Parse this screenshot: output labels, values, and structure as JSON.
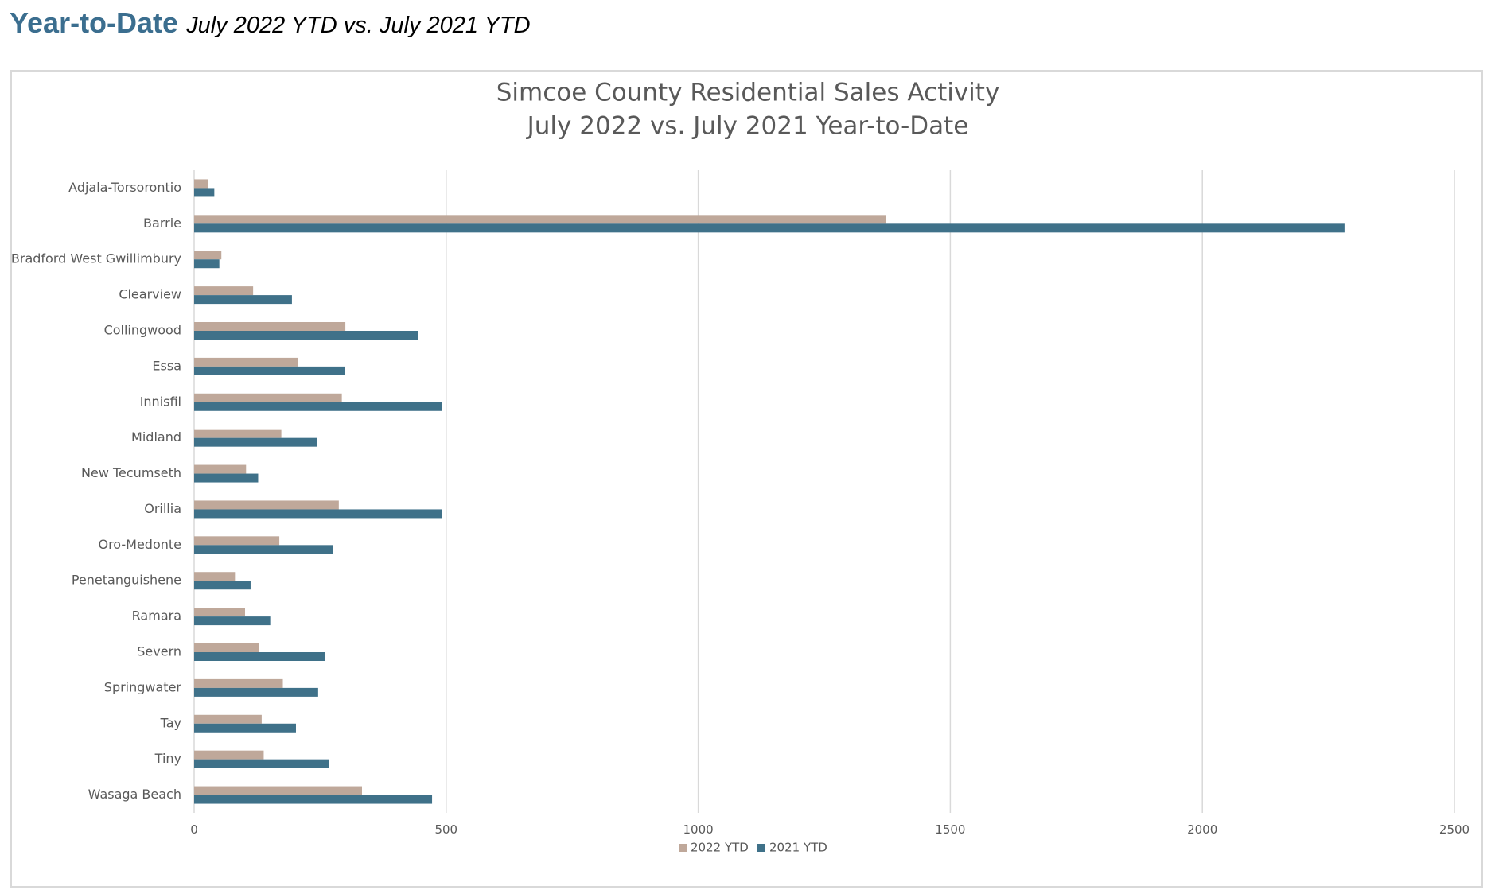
{
  "header": {
    "title": "Year-to-Date",
    "subtitle": "July 2022 YTD vs. July 2021 YTD"
  },
  "colors": {
    "accent": "#3b6e8f",
    "series_2022": "#bfa89a",
    "series_2021": "#3f7189",
    "gridline": "#d9d9d9",
    "text": "#595959"
  },
  "chart_data": {
    "type": "bar",
    "orientation": "horizontal",
    "title": [
      "Simcoe County Residential Sales Activity",
      "July 2022 vs. July 2021 Year-to-Date"
    ],
    "categories": [
      "Adjala-Torsorontio",
      "Barrie",
      "Bradford West Gwillimbury",
      "Clearview",
      "Collingwood",
      "Essa",
      "Innisfil",
      "Midland",
      "New Tecumseth",
      "Orillia",
      "Oro-Medonte",
      "Penetanguishene",
      "Ramara",
      "Severn",
      "Springwater",
      "Tay",
      "Tiny",
      "Wasaga Beach"
    ],
    "series": [
      {
        "name": "2022 YTD",
        "values": [
          28,
          1373,
          54,
          117,
          300,
          206,
          293,
          173,
          103,
          287,
          169,
          81,
          101,
          129,
          176,
          134,
          138,
          333
        ]
      },
      {
        "name": "2021 YTD",
        "values": [
          40,
          2282,
          50,
          194,
          444,
          299,
          491,
          244,
          127,
          491,
          276,
          112,
          151,
          259,
          246,
          202,
          267,
          472
        ]
      }
    ],
    "x_ticks": [
      "0",
      "500",
      "1000",
      "1500",
      "2000",
      "2500"
    ],
    "xlim": [
      0,
      2500
    ],
    "grid": "vertical",
    "legend_position": "bottom",
    "xlabel": "",
    "ylabel": ""
  }
}
